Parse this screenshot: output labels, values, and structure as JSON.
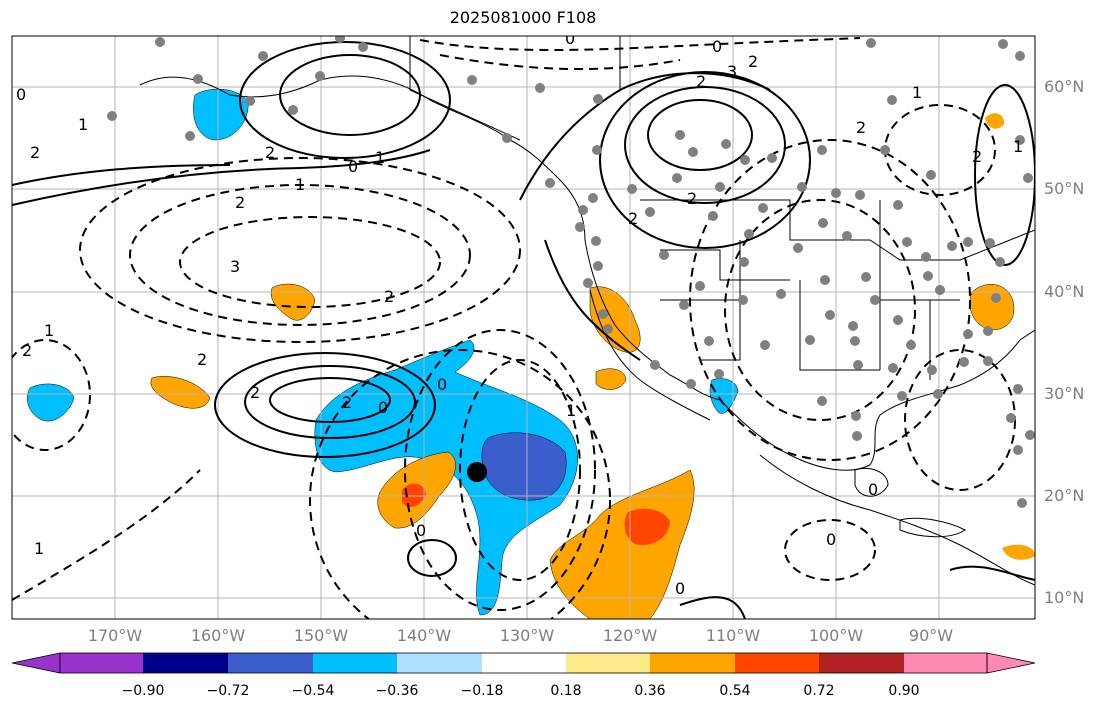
{
  "title": "2025081000 F108",
  "lat_labels": [
    "60°N",
    "50°N",
    "40°N",
    "30°N",
    "20°N",
    "10°N"
  ],
  "lon_labels": [
    "170°W",
    "160°W",
    "150°W",
    "140°W",
    "130°W",
    "120°W",
    "110°W",
    "100°W",
    "90°W"
  ],
  "colorbar": {
    "tick_labels": [
      "−0.90",
      "−0.72",
      "−0.54",
      "−0.36",
      "−0.18",
      "0.18",
      "0.36",
      "0.54",
      "0.72",
      "0.90"
    ],
    "colors": [
      "#9a32cd",
      "#00008b",
      "#3a5fcd",
      "#00bfff",
      "#b0e2ff",
      "#ffffff",
      "#fdeb8a",
      "#ffa500",
      "#ff4500",
      "#b22222",
      "#ff88b4"
    ]
  },
  "contour_labels": [
    "0",
    "1",
    "2",
    "2",
    "0",
    "1",
    "1",
    "2",
    "3",
    "2",
    "1",
    "2",
    "2",
    "2",
    "2",
    "0",
    "0",
    "1",
    "2",
    "3",
    "2",
    "0",
    "0",
    "2",
    "2",
    "2",
    "2",
    "1",
    "1",
    "0",
    "0",
    "0",
    "0",
    "1"
  ],
  "marker": "storm-center-dot"
}
